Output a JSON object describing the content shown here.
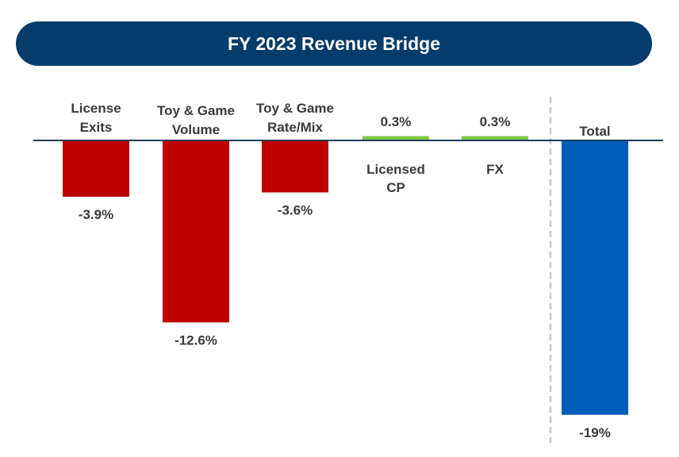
{
  "chart_data": {
    "type": "bar",
    "subtype": "waterfall-bridge",
    "title": "FY 2023 Revenue Bridge",
    "categories": [
      [
        "License",
        "Exits"
      ],
      [
        "Toy & Game",
        "Volume"
      ],
      [
        "Toy & Game",
        "Rate/Mix"
      ],
      [
        "Licensed",
        "CP"
      ],
      [
        "FX"
      ],
      [
        "Total"
      ]
    ],
    "values": [
      -3.9,
      -12.6,
      -3.6,
      0.3,
      0.3,
      -19
    ],
    "value_labels": [
      "-3.9%",
      "-12.6%",
      "-3.6%",
      "0.3%",
      "0.3%",
      "-19%"
    ],
    "bar_colors": [
      "#c00000",
      "#c00000",
      "#c00000",
      "#7ac943",
      "#7ac943",
      "#005eb8"
    ],
    "ylim": [
      -20,
      1
    ],
    "xlabel": "",
    "ylabel": "",
    "grid": false,
    "separator_before_total": true
  },
  "colors": {
    "banner": "#053c6b",
    "axis": "#1f3b5a",
    "negative": "#c00000",
    "positive": "#7ac943",
    "total": "#005eb8",
    "separator": "#c8c8c8",
    "text": "#3a3a3a"
  }
}
